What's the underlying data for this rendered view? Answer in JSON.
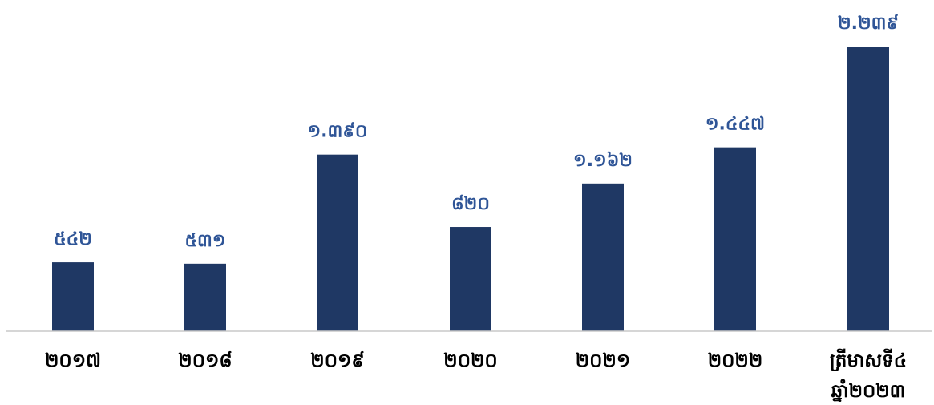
{
  "chart_data": {
    "type": "bar",
    "categories": [
      "២០១៧",
      "២០១៨",
      "២០១៩",
      "២០២០",
      "២០២១",
      "២០២២",
      "ត្រីមាសទី៤ ឆ្នាំ២០២៣"
    ],
    "category_lines": [
      [
        "២០១៧"
      ],
      [
        "២០១៨"
      ],
      [
        "២០១៩"
      ],
      [
        "២០២០"
      ],
      [
        "២០២១"
      ],
      [
        "២០២២"
      ],
      [
        "ត្រីមាសទី៤",
        "ឆ្នាំ២០២៣"
      ]
    ],
    "values": [
      542,
      531,
      1390,
      820,
      1162,
      1447,
      2239
    ],
    "value_labels": [
      "៥៤២",
      "៥៣១",
      "១.៣៩០",
      "៨២០",
      "១.១៦២",
      "១.៤៤៧",
      "២.២៣៩"
    ],
    "title": "",
    "xlabel": "",
    "ylabel": "",
    "ylim": [
      0,
      2400
    ],
    "grid": false,
    "legend": "none",
    "colors": {
      "bar": "#1f3864",
      "value_label": "#2f5597",
      "category_label": "#000000",
      "axis": "#c8c8c8"
    }
  }
}
